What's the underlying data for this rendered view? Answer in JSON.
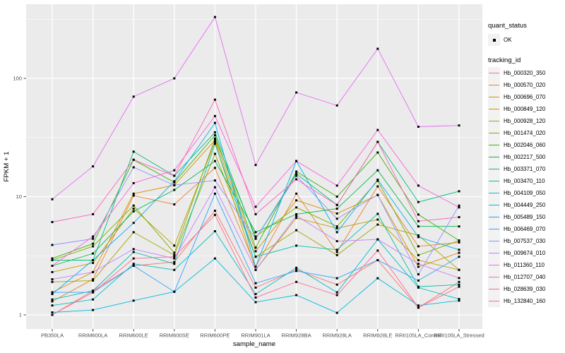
{
  "chart_data": {
    "type": "line",
    "title": "",
    "xlabel": "sample_name",
    "ylabel": "FPKM + 1",
    "y_scale": "log10",
    "y_ticks": [
      "1",
      "10",
      "100"
    ],
    "y_tick_values": [
      1,
      10,
      100
    ],
    "y_minor_values": [
      3.1623,
      31.623,
      316.23
    ],
    "ylim": [
      0.78,
      420
    ],
    "grid": true,
    "panel_bg": "#EBEBEB",
    "grid_color": "#FFFFFF",
    "point_color": "#000000",
    "legend_position": "right",
    "categories": [
      "PB350LA",
      "RRIM600LA",
      "RRIM600LE",
      "RRIM600SE",
      "RRIM600PE",
      "RRIM901LA",
      "RRIM928BA",
      "RRIM928LA",
      "RRIM928LE",
      "RRII105LA_Control",
      "RRII105LA_Stressed"
    ],
    "legend": {
      "quant_status_title": "quant_status",
      "quant_status_items": [
        {
          "label": "OK",
          "marker": "black-square"
        }
      ],
      "tracking_id_title": "tracking_id"
    },
    "series": [
      {
        "name": "Hb_000320_350",
        "color": "#F8766D",
        "values": [
          1.0,
          1.6,
          2.6,
          2.8,
          7.6,
          1.7,
          2.4,
          1.8,
          2.9,
          1.15,
          1.9
        ]
      },
      {
        "name": "Hb_000570_020",
        "color": "#EA8331",
        "values": [
          1.3,
          2.0,
          10.2,
          8.6,
          17.5,
          2.55,
          10.6,
          3.4,
          12.2,
          3.8,
          4.1
        ]
      },
      {
        "name": "Hb_000696_070",
        "color": "#D89000",
        "values": [
          1.55,
          2.3,
          10.6,
          12.5,
          30,
          3.45,
          9.3,
          7.2,
          10.3,
          2.55,
          3.35
        ]
      },
      {
        "name": "Hb_000849_120",
        "color": "#C09B00",
        "values": [
          2.3,
          2.75,
          7.9,
          3.85,
          29,
          2.4,
          6.6,
          5.4,
          6.4,
          2.9,
          2.4
        ]
      },
      {
        "name": "Hb_000928_120",
        "color": "#A3A500",
        "values": [
          1.9,
          1.95,
          5.0,
          3.2,
          23,
          3.1,
          5.2,
          3.2,
          5.8,
          4.7,
          2.4
        ]
      },
      {
        "name": "Hb_001474_020",
        "color": "#7CAE00",
        "values": [
          2.9,
          3.8,
          8.4,
          3.35,
          31,
          4.6,
          8.1,
          5.6,
          13.6,
          3.2,
          4.25
        ]
      },
      {
        "name": "Hb_002046_060",
        "color": "#39B600",
        "values": [
          3.0,
          4.0,
          20.5,
          13.2,
          33,
          3.7,
          16.3,
          10.0,
          23.6,
          7.05,
          4.25
        ]
      },
      {
        "name": "Hb_002217_500",
        "color": "#00BB4E",
        "values": [
          2.6,
          3.3,
          7.5,
          11.4,
          20,
          5.0,
          7.1,
          7.9,
          16.7,
          5.6,
          5.6
        ]
      },
      {
        "name": "Hb_003371_070",
        "color": "#00BF7D",
        "values": [
          2.9,
          2.9,
          24,
          15,
          35,
          4.4,
          15.6,
          8.5,
          29,
          9.0,
          11.1
        ]
      },
      {
        "name": "Hb_003470_110",
        "color": "#00C1A3",
        "values": [
          1.35,
          1.6,
          3.4,
          2.7,
          28,
          3.1,
          3.85,
          3.55,
          7.15,
          1.73,
          1.8
        ]
      },
      {
        "name": "Hb_004109_050",
        "color": "#00BFC4",
        "values": [
          1.2,
          1.35,
          2.7,
          2.4,
          5.1,
          1.5,
          2.5,
          1.55,
          4.35,
          1.7,
          1.36
        ]
      },
      {
        "name": "Hb_004449_250",
        "color": "#00BAE0",
        "values": [
          1.05,
          1.1,
          1.32,
          1.57,
          3.0,
          1.28,
          1.47,
          1.04,
          2.04,
          1.2,
          1.32
        ]
      },
      {
        "name": "Hb_005489_150",
        "color": "#00B0F6",
        "values": [
          1.5,
          2.9,
          6.0,
          13.5,
          42,
          2.55,
          20,
          5.0,
          13.9,
          4.55,
          3.55
        ]
      },
      {
        "name": "Hb_006469_070",
        "color": "#35A2FF",
        "values": [
          1.55,
          1.55,
          2.6,
          1.57,
          10.6,
          1.85,
          2.35,
          2.04,
          2.9,
          1.95,
          3.1
        ]
      },
      {
        "name": "Hb_007537_030",
        "color": "#9590FF",
        "values": [
          3.9,
          4.4,
          17.7,
          12.5,
          13.7,
          4.4,
          15,
          6.5,
          10.35,
          2.2,
          8.4
        ]
      },
      {
        "name": "Hb_009674_010",
        "color": "#C77CFF",
        "values": [
          2.0,
          2.3,
          3.6,
          3.0,
          12,
          2.4,
          6.9,
          4.2,
          4.35,
          2.7,
          2.05
        ]
      },
      {
        "name": "Hb_011360_110",
        "color": "#E76BF3",
        "values": [
          9.5,
          18,
          70,
          100,
          330,
          18.5,
          76,
          59,
          178,
          39,
          40
        ]
      },
      {
        "name": "Hb_012707_040",
        "color": "#FA62DB",
        "values": [
          2.6,
          4.6,
          13,
          16.7,
          48,
          8.2,
          20,
          12.4,
          36.6,
          12.4,
          8.1
        ]
      },
      {
        "name": "Hb_028639_030",
        "color": "#FF62BC",
        "values": [
          6.1,
          7.1,
          20.5,
          15,
          66,
          7.1,
          14,
          8.5,
          29,
          6.2,
          6.7
        ]
      },
      {
        "name": "Hb_132840_160",
        "color": "#FF6A98",
        "values": [
          1.0,
          1.55,
          3.0,
          3.1,
          7.0,
          1.4,
          1.9,
          1.47,
          3.5,
          1.15,
          1.73
        ]
      }
    ]
  }
}
